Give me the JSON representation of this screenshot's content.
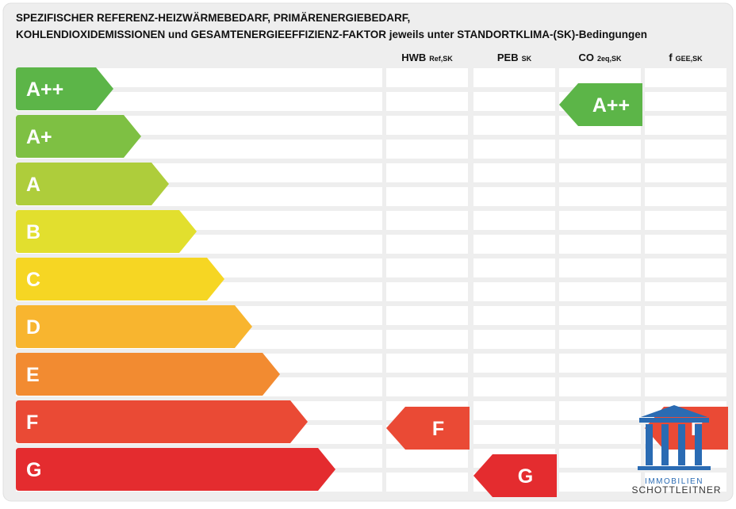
{
  "title": [
    "SPEZIFISCHER REFERENZ-HEIZWÄRMEBEDARF, PRIMÄRENERGIEBEDARF,",
    "KOHLENDIOXIDEMISSIONEN und GESAMTENERGIEEFFIZIENZ-FAKTOR jeweils unter STANDORTKLIMA-(SK)-Bedingungen"
  ],
  "columns": [
    {
      "label": "HWB",
      "sub": "Ref,SK",
      "rating": "F"
    },
    {
      "label": "PEB",
      "sub": "SK",
      "rating": "G"
    },
    {
      "label": "CO",
      "sub": "2eq,SK",
      "rating": "A++"
    },
    {
      "label": "f",
      "sub": "GEE,SK",
      "rating": "F"
    }
  ],
  "classes": [
    "A++",
    "A+",
    "A",
    "B",
    "C",
    "D",
    "E",
    "F",
    "G"
  ],
  "logo": {
    "line1": "IMMOBILIEN",
    "line2": "SCHOTTLEITNER"
  }
}
